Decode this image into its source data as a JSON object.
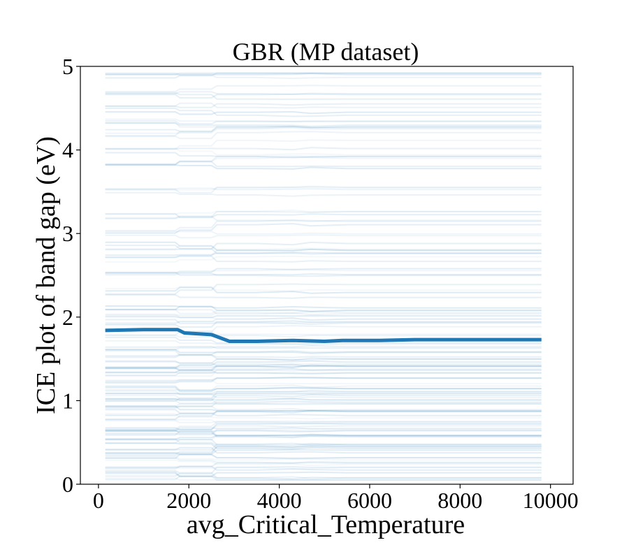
{
  "chart_data": {
    "type": "line",
    "title": "GBR (MP dataset)",
    "xlabel": "avg_Critical_Temperature",
    "ylabel": "ICE plot of band gap (eV)",
    "xlim": [
      -400,
      10500
    ],
    "ylim": [
      0,
      5
    ],
    "xticks": [
      0,
      2000,
      4000,
      6000,
      8000,
      10000
    ],
    "yticks": [
      0,
      1,
      2,
      3,
      4,
      5
    ],
    "grid": false,
    "legend": "none",
    "colors": {
      "ice": "#1f77b4",
      "average": "#1f77b4"
    },
    "average_curve": {
      "x": [
        150,
        1000,
        1750,
        1900,
        2500,
        2900,
        3500,
        4300,
        5000,
        5400,
        6200,
        7000,
        8000,
        9800
      ],
      "y": [
        1.84,
        1.85,
        1.85,
        1.81,
        1.79,
        1.71,
        1.71,
        1.72,
        1.71,
        1.72,
        1.72,
        1.73,
        1.73,
        1.73
      ]
    },
    "ice_levels": [
      0.1,
      0.2,
      0.3,
      0.4,
      0.5,
      0.62,
      0.68,
      0.8,
      0.9,
      1.0,
      1.1,
      1.2,
      1.3,
      1.4,
      1.5,
      1.6,
      1.75,
      1.9,
      2.0,
      2.1,
      2.3,
      2.5,
      2.7,
      2.85,
      3.0,
      3.2,
      3.5,
      3.8,
      4.0,
      4.2,
      4.35,
      4.5,
      4.7,
      4.9
    ]
  }
}
